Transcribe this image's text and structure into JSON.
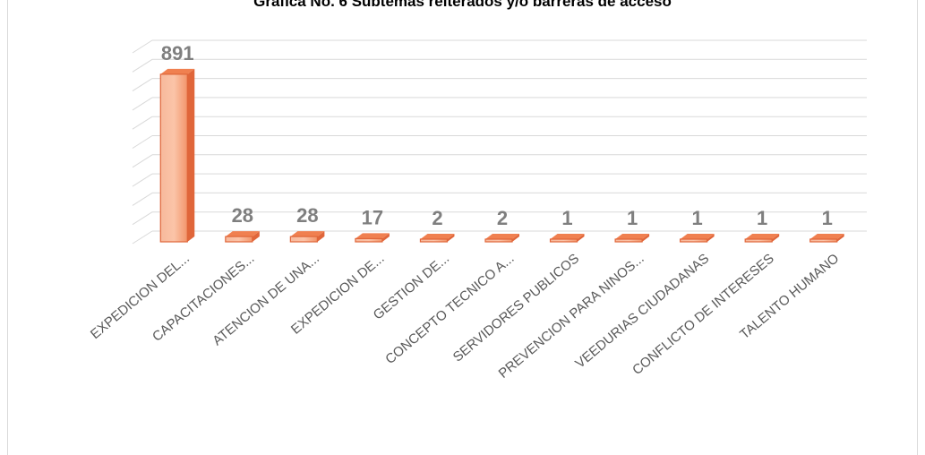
{
  "chart_data": {
    "type": "bar",
    "title": "Grafica No. 6 Subtemas reiterados y/o barreras de acceso",
    "categories": [
      "EXPEDICION DEL...",
      "CAPACITACIONES...",
      "ATENCION DE UNA...",
      "EXPEDICION DE...",
      "GESTION DE...",
      "CONCEPTO TECNICO A...",
      "SERVIDORES PUBLICOS",
      "PREVENCION PARA NINOS...",
      "VEEDURIAS CIUDADANAS",
      "CONFLICTO DE INTERESES",
      "TALENTO HUMANO"
    ],
    "values": [
      891,
      28,
      28,
      17,
      2,
      2,
      1,
      1,
      1,
      1,
      1
    ],
    "ylim": [
      0,
      1000
    ],
    "grid": true,
    "colors": {
      "bar_front": "#f4a582",
      "bar_side": "#e0663a",
      "bar_top": "#f08050",
      "grid": "#d9d9d9"
    }
  }
}
